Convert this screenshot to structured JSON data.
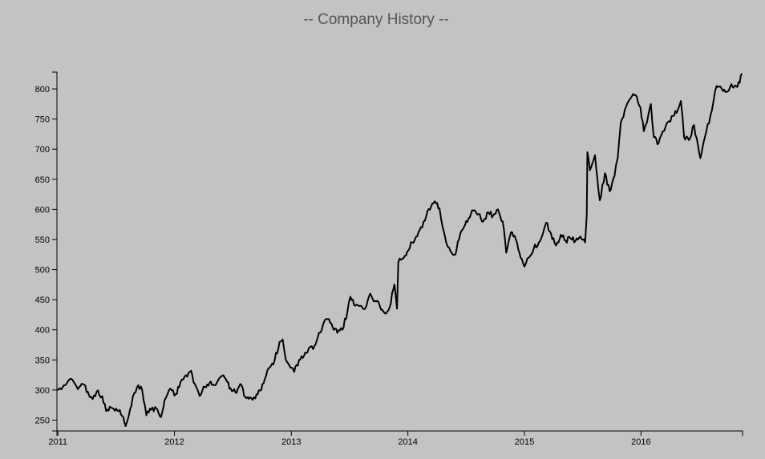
{
  "page": {
    "title": "-- Company History --"
  },
  "chart_data": {
    "type": "line",
    "title": "-- Company History --",
    "xlabel": "",
    "ylabel": "",
    "x_ticks": [
      "2011",
      "2012",
      "2013",
      "2014",
      "2015",
      "2016"
    ],
    "y_ticks": [
      250,
      300,
      350,
      400,
      450,
      500,
      550,
      600,
      650,
      700,
      750,
      800
    ],
    "xlim": [
      "2010-12-29",
      "2016-11-14"
    ],
    "ylim": [
      232,
      828
    ],
    "grid": false,
    "line_color": "#000000",
    "series": [
      {
        "points": [
          [
            "2010-12-29",
            300
          ],
          [
            "2011-01-20",
            308
          ],
          [
            "2011-02-07",
            318
          ],
          [
            "2011-03-01",
            305
          ],
          [
            "2011-03-20",
            310
          ],
          [
            "2011-04-05",
            297
          ],
          [
            "2011-04-20",
            285
          ],
          [
            "2011-05-02",
            297
          ],
          [
            "2011-05-20",
            290
          ],
          [
            "2011-06-01",
            265
          ],
          [
            "2011-06-20",
            270
          ],
          [
            "2011-07-10",
            265
          ],
          [
            "2011-07-25",
            255
          ],
          [
            "2011-08-01",
            240
          ],
          [
            "2011-08-15",
            268
          ],
          [
            "2011-08-28",
            295
          ],
          [
            "2011-09-10",
            308
          ],
          [
            "2011-09-22",
            300
          ],
          [
            "2011-10-05",
            258
          ],
          [
            "2011-10-20",
            267
          ],
          [
            "2011-11-05",
            270
          ],
          [
            "2011-11-20",
            255
          ],
          [
            "2011-12-01",
            283
          ],
          [
            "2011-12-15",
            300
          ],
          [
            "2012-01-05",
            293
          ],
          [
            "2012-01-20",
            313
          ],
          [
            "2012-02-10",
            322
          ],
          [
            "2012-02-22",
            332
          ],
          [
            "2012-03-05",
            310
          ],
          [
            "2012-03-20",
            290
          ],
          [
            "2012-04-05",
            305
          ],
          [
            "2012-04-20",
            312
          ],
          [
            "2012-05-05",
            308
          ],
          [
            "2012-05-25",
            322
          ],
          [
            "2012-06-10",
            318
          ],
          [
            "2012-06-25",
            303
          ],
          [
            "2012-07-10",
            296
          ],
          [
            "2012-07-25",
            310
          ],
          [
            "2012-08-10",
            288
          ],
          [
            "2012-08-25",
            288
          ],
          [
            "2012-09-10",
            286
          ],
          [
            "2012-09-25",
            299
          ],
          [
            "2012-10-10",
            318
          ],
          [
            "2012-10-25",
            337
          ],
          [
            "2012-11-10",
            350
          ],
          [
            "2012-11-25",
            380
          ],
          [
            "2012-12-05",
            384
          ],
          [
            "2012-12-15",
            350
          ],
          [
            "2012-12-30",
            337
          ],
          [
            "2013-01-10",
            330
          ],
          [
            "2013-01-25",
            350
          ],
          [
            "2013-02-10",
            357
          ],
          [
            "2013-02-25",
            370
          ],
          [
            "2013-03-10",
            368
          ],
          [
            "2013-03-25",
            388
          ],
          [
            "2013-04-10",
            408
          ],
          [
            "2013-04-25",
            418
          ],
          [
            "2013-05-10",
            405
          ],
          [
            "2013-05-25",
            395
          ],
          [
            "2013-06-10",
            400
          ],
          [
            "2013-06-25",
            428
          ],
          [
            "2013-07-05",
            455
          ],
          [
            "2013-07-20",
            440
          ],
          [
            "2013-08-05",
            440
          ],
          [
            "2013-08-20",
            435
          ],
          [
            "2013-09-05",
            460
          ],
          [
            "2013-09-20",
            448
          ],
          [
            "2013-10-05",
            440
          ],
          [
            "2013-10-20",
            428
          ],
          [
            "2013-11-05",
            438
          ],
          [
            "2013-11-20",
            475
          ],
          [
            "2013-11-28",
            435
          ],
          [
            "2013-12-02",
            512
          ],
          [
            "2013-12-15",
            518
          ],
          [
            "2013-12-30",
            530
          ],
          [
            "2014-01-15",
            545
          ],
          [
            "2014-01-30",
            555
          ],
          [
            "2014-02-15",
            570
          ],
          [
            "2014-02-28",
            590
          ],
          [
            "2014-03-15",
            605
          ],
          [
            "2014-03-30",
            610
          ],
          [
            "2014-04-10",
            602
          ],
          [
            "2014-04-20",
            570
          ],
          [
            "2014-05-01",
            545
          ],
          [
            "2014-05-15",
            530
          ],
          [
            "2014-05-30",
            525
          ],
          [
            "2014-06-10",
            550
          ],
          [
            "2014-06-25",
            570
          ],
          [
            "2014-07-10",
            585
          ],
          [
            "2014-07-25",
            598
          ],
          [
            "2014-08-10",
            592
          ],
          [
            "2014-08-25",
            580
          ],
          [
            "2014-09-10",
            595
          ],
          [
            "2014-09-25",
            590
          ],
          [
            "2014-10-10",
            600
          ],
          [
            "2014-10-25",
            580
          ],
          [
            "2014-11-05",
            528
          ],
          [
            "2014-11-20",
            562
          ],
          [
            "2014-12-05",
            550
          ],
          [
            "2014-12-20",
            520
          ],
          [
            "2015-01-01",
            505
          ],
          [
            "2015-01-15",
            520
          ],
          [
            "2015-01-30",
            535
          ],
          [
            "2015-02-15",
            545
          ],
          [
            "2015-02-28",
            560
          ],
          [
            "2015-03-10",
            578
          ],
          [
            "2015-03-25",
            560
          ],
          [
            "2015-04-10",
            540
          ],
          [
            "2015-04-25",
            558
          ],
          [
            "2015-05-10",
            548
          ],
          [
            "2015-05-25",
            552
          ],
          [
            "2015-06-10",
            548
          ],
          [
            "2015-06-25",
            555
          ],
          [
            "2015-07-10",
            545
          ],
          [
            "2015-07-15",
            590
          ],
          [
            "2015-07-17",
            695
          ],
          [
            "2015-07-25",
            665
          ],
          [
            "2015-08-10",
            690
          ],
          [
            "2015-08-25",
            615
          ],
          [
            "2015-09-10",
            660
          ],
          [
            "2015-09-25",
            630
          ],
          [
            "2015-10-10",
            655
          ],
          [
            "2015-10-20",
            685
          ],
          [
            "2015-10-30",
            745
          ],
          [
            "2015-11-15",
            770
          ],
          [
            "2015-11-30",
            785
          ],
          [
            "2015-12-15",
            790
          ],
          [
            "2015-12-30",
            770
          ],
          [
            "2016-01-10",
            730
          ],
          [
            "2016-01-20",
            745
          ],
          [
            "2016-02-01",
            775
          ],
          [
            "2016-02-10",
            720
          ],
          [
            "2016-02-25",
            710
          ],
          [
            "2016-03-10",
            730
          ],
          [
            "2016-03-25",
            745
          ],
          [
            "2016-04-10",
            755
          ],
          [
            "2016-04-25",
            765
          ],
          [
            "2016-05-05",
            780
          ],
          [
            "2016-05-15",
            720
          ],
          [
            "2016-05-30",
            715
          ],
          [
            "2016-06-15",
            740
          ],
          [
            "2016-06-28",
            705
          ],
          [
            "2016-07-05",
            685
          ],
          [
            "2016-07-20",
            722
          ],
          [
            "2016-08-05",
            755
          ],
          [
            "2016-08-15",
            780
          ],
          [
            "2016-08-25",
            805
          ],
          [
            "2016-09-10",
            800
          ],
          [
            "2016-09-25",
            795
          ],
          [
            "2016-10-10",
            808
          ],
          [
            "2016-10-25",
            805
          ],
          [
            "2016-11-05",
            810
          ],
          [
            "2016-11-12",
            826
          ]
        ]
      }
    ]
  }
}
